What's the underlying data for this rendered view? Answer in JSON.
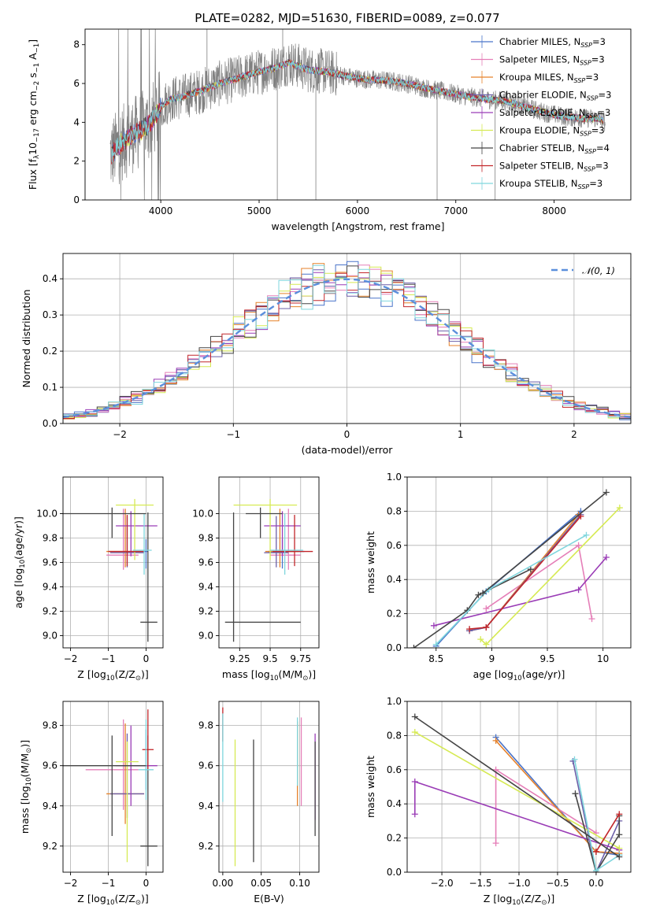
{
  "figure": {
    "title": "PLATE=0282, MJD=51630, FIBERID=0089, z=0.077"
  },
  "colors": {
    "chab_miles": "#4a74c9",
    "salp_miles": "#e57fb8",
    "krou_miles": "#e6822b",
    "chab_elodie": "#6c5fa8",
    "salp_elodie": "#9a3cb6",
    "krou_elodie": "#d6ea54",
    "chab_stelib": "#454545",
    "salp_stelib": "#c2262a",
    "krou_stelib": "#7fd6dd",
    "data": "#808080",
    "normal": "#5b8fdc"
  },
  "chart_data": [
    {
      "id": "spectrum",
      "type": "line",
      "xlabel": "wavelength [Angstrom, rest frame]",
      "ylabel_parts": [
        "Flux [f",
        "λ",
        "10",
        "−17",
        " erg cm",
        "−2",
        " s",
        "−1",
        " A",
        "−1",
        "]"
      ],
      "xlim": [
        3230,
        8780
      ],
      "ylim": [
        0,
        8.8
      ],
      "xticks": [
        4000,
        5000,
        6000,
        7000,
        8000
      ],
      "yticks": [
        0,
        2,
        4,
        6,
        8
      ],
      "grid": false,
      "legend_placement": "top-right",
      "legend": [
        {
          "pre": "Chabrier MILES, N",
          "sub": "SSP",
          "post": "=3",
          "color": "chab_miles"
        },
        {
          "pre": "Salpeter MILES, N",
          "sub": "SSP",
          "post": "=3",
          "color": "salp_miles"
        },
        {
          "pre": "Kroupa MILES, N",
          "sub": "SSP",
          "post": "=3",
          "color": "krou_miles"
        },
        {
          "pre": "Chabrier ELODIE, N",
          "sub": "SSP",
          "post": "=3",
          "color": "chab_elodie"
        },
        {
          "pre": "Salpeter ELODIE, N",
          "sub": "SSP",
          "post": "=3",
          "color": "salp_elodie"
        },
        {
          "pre": "Kroupa ELODIE, N",
          "sub": "SSP",
          "post": "=3",
          "color": "krou_elodie"
        },
        {
          "pre": "Chabrier STELIB, N",
          "sub": "SSP",
          "post": "=4",
          "color": "chab_stelib"
        },
        {
          "pre": "Salpeter STELIB, N",
          "sub": "SSP",
          "post": "=3",
          "color": "salp_stelib"
        },
        {
          "pre": "Kroupa STELIB, N",
          "sub": "SSP",
          "post": "=3",
          "color": "krou_stelib"
        }
      ],
      "continuum": [
        [
          3480,
          2.3
        ],
        [
          3600,
          2.9
        ],
        [
          3700,
          3.3
        ],
        [
          3800,
          3.6
        ],
        [
          3900,
          4.0
        ],
        [
          4000,
          4.8
        ],
        [
          4100,
          5.2
        ],
        [
          4200,
          5.3
        ],
        [
          4400,
          5.6
        ],
        [
          4600,
          6.0
        ],
        [
          4800,
          6.3
        ],
        [
          5000,
          6.6
        ],
        [
          5200,
          6.85
        ],
        [
          5300,
          7.1
        ],
        [
          5500,
          6.7
        ],
        [
          5700,
          6.6
        ],
        [
          5900,
          6.35
        ],
        [
          6100,
          6.2
        ],
        [
          6300,
          6.15
        ],
        [
          6500,
          6.0
        ],
        [
          6700,
          5.75
        ],
        [
          6900,
          5.55
        ],
        [
          7100,
          5.35
        ],
        [
          7300,
          5.2
        ],
        [
          7500,
          5.1
        ],
        [
          7700,
          4.8
        ],
        [
          7900,
          4.5
        ],
        [
          8100,
          4.3
        ],
        [
          8300,
          4.2
        ],
        [
          8450,
          4.2
        ],
        [
          8520,
          4.0
        ]
      ],
      "notes": "continuum approximates the data/model trace read from the plot"
    },
    {
      "id": "residuals",
      "type": "line",
      "xlabel": "(data-model)/error",
      "ylabel": "Normed distribution",
      "xlim": [
        -2.5,
        2.5
      ],
      "ylim": [
        0,
        0.47
      ],
      "xticks": [
        -2,
        -1,
        0,
        1,
        2
      ],
      "yticks": [
        0.0,
        0.1,
        0.2,
        0.3,
        0.4
      ],
      "grid": true,
      "legend_placement": "top-right",
      "legend": [
        {
          "label": "𝒩(0, 1)",
          "color": "normal",
          "style": "dashed"
        }
      ],
      "bin_width": 0.1
    },
    {
      "id": "age_vs_Z",
      "type": "scatter",
      "xlabel_parts": [
        "Z [log",
        "10",
        "(Z/Z",
        "⊙",
        ")]"
      ],
      "ylabel_parts": [
        "age  [log",
        "10",
        "(age/yr)]"
      ],
      "xlim": [
        -2.2,
        0.45
      ],
      "ylim": [
        8.9,
        10.3
      ],
      "xticks": [
        -2,
        -1,
        0
      ],
      "yticks": [
        9.0,
        9.2,
        9.4,
        9.6,
        9.8,
        10.0
      ],
      "grid": true,
      "points": [
        {
          "m": "chab_miles",
          "x": 0.0,
          "xlo": 0.3,
          "xhi": 0.05,
          "y": 9.69,
          "ylo": 0.14,
          "yhi": 0.1
        },
        {
          "m": "salp_miles",
          "x": -0.6,
          "xlo": 0.45,
          "xhi": 0.4,
          "y": 9.66,
          "ylo": 0.12,
          "yhi": 0.38
        },
        {
          "m": "krou_miles",
          "x": -0.55,
          "xlo": 0.5,
          "xhi": 0.4,
          "y": 9.69,
          "ylo": 0.13,
          "yhi": 0.35
        },
        {
          "m": "chab_elodie",
          "x": -0.5,
          "xlo": 0.45,
          "xhi": 0.45,
          "y": 9.68,
          "ylo": 0.12,
          "yhi": 0.3
        },
        {
          "m": "salp_elodie",
          "x": -0.4,
          "xlo": 0.4,
          "xhi": 0.7,
          "y": 9.9,
          "ylo": 0.25,
          "yhi": 0.12
        },
        {
          "m": "krou_elodie",
          "x": -0.3,
          "xlo": 0.5,
          "xhi": 0.5,
          "y": 10.07,
          "ylo": 0.45,
          "yhi": 0.05
        },
        {
          "m": "chab_stelib",
          "x": 0.05,
          "xlo": 0.2,
          "xhi": 0.25,
          "y": 9.11,
          "ylo": 0.16,
          "yhi": 0.9
        },
        {
          "m": "salp_stelib",
          "x": -0.5,
          "xlo": 0.5,
          "xhi": 0.45,
          "y": 9.69,
          "ylo": 0.12,
          "yhi": 0.3
        },
        {
          "m": "krou_stelib",
          "x": -0.05,
          "xlo": 0.3,
          "xhi": 0.2,
          "y": 9.7,
          "ylo": 0.2,
          "yhi": 0.3
        },
        {
          "m": "chab_stelib",
          "x": -0.9,
          "xlo": 1.3,
          "xhi": 0.9,
          "y": 10.0,
          "ylo": 0.2,
          "yhi": 0.05
        }
      ]
    },
    {
      "id": "age_vs_mass",
      "type": "scatter",
      "xlabel_parts": [
        "mass [log",
        "10",
        "(M/M",
        "⊙",
        ")]"
      ],
      "ylabel_parts": [],
      "xlim": [
        9.08,
        9.9
      ],
      "ylim": [
        8.9,
        10.3
      ],
      "xticks": [
        9.25,
        9.5,
        9.75
      ],
      "yticks": [
        9.0,
        9.2,
        9.4,
        9.6,
        9.8,
        10.0
      ],
      "grid": true,
      "points": [
        {
          "m": "chab_miles",
          "x": 9.6,
          "xlo": 0.12,
          "xhi": 0.18,
          "y": 9.69,
          "ylo": 0.14,
          "yhi": 0.1
        },
        {
          "m": "salp_miles",
          "x": 9.65,
          "xlo": 0.15,
          "xhi": 0.1,
          "y": 9.66,
          "ylo": 0.12,
          "yhi": 0.38
        },
        {
          "m": "krou_miles",
          "x": 9.58,
          "xlo": 0.12,
          "xhi": 0.15,
          "y": 9.69,
          "ylo": 0.13,
          "yhi": 0.35
        },
        {
          "m": "chab_elodie",
          "x": 9.55,
          "xlo": 0.1,
          "xhi": 0.1,
          "y": 9.68,
          "ylo": 0.12,
          "yhi": 0.3
        },
        {
          "m": "salp_elodie",
          "x": 9.6,
          "xlo": 0.15,
          "xhi": 0.15,
          "y": 9.9,
          "ylo": 0.25,
          "yhi": 0.12
        },
        {
          "m": "krou_elodie",
          "x": 9.5,
          "xlo": 0.3,
          "xhi": 0.22,
          "y": 10.07,
          "ylo": 0.45,
          "yhi": 0.05
        },
        {
          "m": "chab_stelib",
          "x": 9.2,
          "xlo": 0.07,
          "xhi": 0.55,
          "y": 9.11,
          "ylo": 0.16,
          "yhi": 0.9
        },
        {
          "m": "salp_stelib",
          "x": 9.7,
          "xlo": 0.18,
          "xhi": 0.15,
          "y": 9.69,
          "ylo": 0.12,
          "yhi": 0.3
        },
        {
          "m": "krou_stelib",
          "x": 9.62,
          "xlo": 0.12,
          "xhi": 0.15,
          "y": 9.7,
          "ylo": 0.2,
          "yhi": 0.3
        },
        {
          "m": "chab_stelib",
          "x": 9.42,
          "xlo": 0.12,
          "xhi": 0.18,
          "y": 10.0,
          "ylo": 0.2,
          "yhi": 0.05
        }
      ]
    },
    {
      "id": "mw_vs_age",
      "type": "line",
      "xlabel_parts": [
        "age  [log",
        "10",
        "(age/yr)]"
      ],
      "ylabel": "mass weight",
      "xlim": [
        8.24,
        10.25
      ],
      "ylim": [
        0,
        1.0
      ],
      "xticks": [
        8.5,
        9.0,
        9.5,
        10.0
      ],
      "yticks": [
        0.0,
        0.2,
        0.4,
        0.6,
        0.8,
        1.0
      ],
      "grid": true,
      "series": [
        {
          "m": "chab_miles",
          "x": [
            8.5,
            8.95,
            9.8
          ],
          "y": [
            0.01,
            0.33,
            0.8
          ]
        },
        {
          "m": "salp_miles",
          "x": [
            8.95,
            9.78,
            9.9
          ],
          "y": [
            0.23,
            0.6,
            0.17
          ]
        },
        {
          "m": "krou_miles",
          "x": [
            8.8,
            8.95,
            9.78
          ],
          "y": [
            0.1,
            0.12,
            0.78
          ]
        },
        {
          "m": "chab_elodie",
          "x": [
            8.8,
            8.95,
            9.8
          ],
          "y": [
            0.1,
            0.12,
            0.78
          ]
        },
        {
          "m": "salp_elodie",
          "x": [
            8.48,
            9.78,
            10.03
          ],
          "y": [
            0.13,
            0.34,
            0.53
          ]
        },
        {
          "m": "krou_elodie",
          "x": [
            8.9,
            8.95,
            10.15
          ],
          "y": [
            0.05,
            0.02,
            0.82
          ]
        },
        {
          "m": "chab_stelib",
          "x": [
            8.3,
            8.78,
            8.88,
            9.35
          ],
          "y": [
            0.0,
            0.22,
            0.31,
            0.46
          ]
        },
        {
          "m": "salp_stelib",
          "x": [
            8.8,
            8.95,
            9.8
          ],
          "y": [
            0.11,
            0.12,
            0.77
          ]
        },
        {
          "m": "krou_stelib",
          "x": [
            8.5,
            8.97,
            9.85
          ],
          "y": [
            0.02,
            0.34,
            0.66
          ]
        },
        {
          "m": "chab_stelib",
          "x": [
            8.92,
            10.03
          ],
          "y": [
            0.32,
            0.91
          ]
        }
      ]
    },
    {
      "id": "mass_vs_Z",
      "type": "scatter",
      "xlabel_parts": [
        "Z [log",
        "10",
        "(Z/Z",
        "⊙",
        ")]"
      ],
      "ylabel_parts": [
        "mass [log",
        "10",
        "(M/M",
        "⊙",
        ")]"
      ],
      "xlim": [
        -2.2,
        0.45
      ],
      "ylim": [
        9.07,
        9.92
      ],
      "xticks": [
        -2,
        -1,
        0
      ],
      "yticks": [
        9.2,
        9.4,
        9.6,
        9.8
      ],
      "grid": true,
      "points": [
        {
          "m": "chab_miles",
          "x": 0.0,
          "xlo": 0.3,
          "xhi": 0.05,
          "y": 9.6,
          "ylo": 0.12,
          "yhi": 0.18
        },
        {
          "m": "salp_miles",
          "x": -0.6,
          "xlo": 1.0,
          "xhi": 0.4,
          "y": 9.58,
          "ylo": 0.2,
          "yhi": 0.25
        },
        {
          "m": "krou_miles",
          "x": -0.55,
          "xlo": 0.5,
          "xhi": 0.5,
          "y": 9.46,
          "ylo": 0.15,
          "yhi": 0.35
        },
        {
          "m": "chab_elodie",
          "x": -0.5,
          "xlo": 0.45,
          "xhi": 0.45,
          "y": 9.46,
          "ylo": 0.12,
          "yhi": 0.3
        },
        {
          "m": "salp_elodie",
          "x": -0.4,
          "xlo": 0.4,
          "xhi": 0.7,
          "y": 9.6,
          "ylo": 0.2,
          "yhi": 0.2
        },
        {
          "m": "krou_elodie",
          "x": -0.5,
          "xlo": 0.3,
          "xhi": 0.3,
          "y": 9.62,
          "ylo": 0.5,
          "yhi": 0.1
        },
        {
          "m": "chab_stelib",
          "x": 0.05,
          "xlo": 0.2,
          "xhi": 0.25,
          "y": 9.2,
          "ylo": 0.1,
          "yhi": 0.55
        },
        {
          "m": "salp_stelib",
          "x": 0.05,
          "xlo": 0.15,
          "xhi": 0.15,
          "y": 9.68,
          "ylo": 0.1,
          "yhi": 0.2
        },
        {
          "m": "krou_stelib",
          "x": 0.0,
          "xlo": 0.2,
          "xhi": 0.2,
          "y": 9.58,
          "ylo": 0.15,
          "yhi": 0.25
        },
        {
          "m": "chab_stelib",
          "x": -0.9,
          "xlo": 1.3,
          "xhi": 0.9,
          "y": 9.6,
          "ylo": 0.35,
          "yhi": 0.15
        }
      ]
    },
    {
      "id": "mass_vs_EBV",
      "type": "scatter",
      "xlabel": "E(B-V)",
      "ylabel_parts": [],
      "xlim": [
        -0.005,
        0.125
      ],
      "ylim": [
        9.07,
        9.92
      ],
      "xticks": [
        0.0,
        0.05,
        0.1
      ],
      "xtick_labels": [
        "0.00",
        "0.05",
        "0.10"
      ],
      "yticks": [
        9.2,
        9.4,
        9.6,
        9.8
      ],
      "grid": true,
      "segments": [
        {
          "m": "salp_stelib",
          "x": 0.0,
          "y0": 9.72,
          "y1": 9.89
        },
        {
          "m": "krou_stelib",
          "x": 0.0,
          "y0": 9.42,
          "y1": 9.86
        },
        {
          "m": "krou_elodie",
          "x": 0.016,
          "y0": 9.1,
          "y1": 9.73
        },
        {
          "m": "chab_stelib",
          "x": 0.04,
          "y0": 9.12,
          "y1": 9.73
        },
        {
          "m": "krou_miles",
          "x": 0.097,
          "y0": 9.4,
          "y1": 9.82
        },
        {
          "m": "krou_stelib",
          "x": 0.097,
          "y0": 9.5,
          "y1": 9.84
        },
        {
          "m": "salp_miles",
          "x": 0.102,
          "y0": 9.4,
          "y1": 9.84
        },
        {
          "m": "salp_elodie",
          "x": 0.12,
          "y0": 9.33,
          "y1": 9.76
        },
        {
          "m": "chab_stelib",
          "x": 0.12,
          "y0": 9.25,
          "y1": 9.72
        }
      ]
    },
    {
      "id": "mw_vs_Z",
      "type": "line",
      "xlabel_parts": [
        "Z [log",
        "10",
        "(Z/Z",
        "⊙",
        ")]"
      ],
      "ylabel": "mass weight",
      "xlim": [
        -2.45,
        0.45
      ],
      "ylim": [
        0,
        1.0
      ],
      "xticks": [
        -2.0,
        -1.5,
        -1.0,
        -0.5,
        0.0
      ],
      "xtick_labels": [
        "−2.0",
        "−1.5",
        "−1.0",
        "−0.5",
        "0.0"
      ],
      "yticks": [
        0.0,
        0.2,
        0.4,
        0.6,
        0.8,
        1.0
      ],
      "grid": true,
      "series": [
        {
          "m": "chab_miles",
          "x": [
            -1.3,
            0.0,
            0.3
          ],
          "y": [
            0.79,
            0.12,
            0.1
          ]
        },
        {
          "m": "salp_miles",
          "x": [
            -1.3,
            -1.3,
            0.0
          ],
          "y": [
            0.17,
            0.6,
            0.23
          ]
        },
        {
          "m": "krou_miles",
          "x": [
            -1.3,
            0.0,
            0.3
          ],
          "y": [
            0.77,
            0.12,
            0.11
          ]
        },
        {
          "m": "chab_elodie",
          "x": [
            -0.3,
            0.0,
            0.3
          ],
          "y": [
            0.65,
            0.0,
            0.3
          ]
        },
        {
          "m": "salp_elodie",
          "x": [
            -2.35,
            -2.35,
            0.3
          ],
          "y": [
            0.34,
            0.53,
            0.13
          ]
        },
        {
          "m": "krou_elodie",
          "x": [
            -2.35,
            0.3
          ],
          "y": [
            0.82,
            0.14
          ]
        },
        {
          "m": "chab_stelib",
          "x": [
            -0.27,
            0.0,
            0.3,
            0.3
          ],
          "y": [
            0.46,
            0.0,
            0.22,
            0.33
          ]
        },
        {
          "m": "salp_stelib",
          "x": [
            0.0,
            0.3
          ],
          "y": [
            0.12,
            0.34
          ]
        },
        {
          "m": "krou_stelib",
          "x": [
            -0.28,
            0.0,
            0.3
          ],
          "y": [
            0.66,
            0.01,
            0.1
          ]
        },
        {
          "m": "chab_stelib",
          "x": [
            -2.35,
            0.3
          ],
          "y": [
            0.91,
            0.09
          ]
        }
      ]
    }
  ]
}
